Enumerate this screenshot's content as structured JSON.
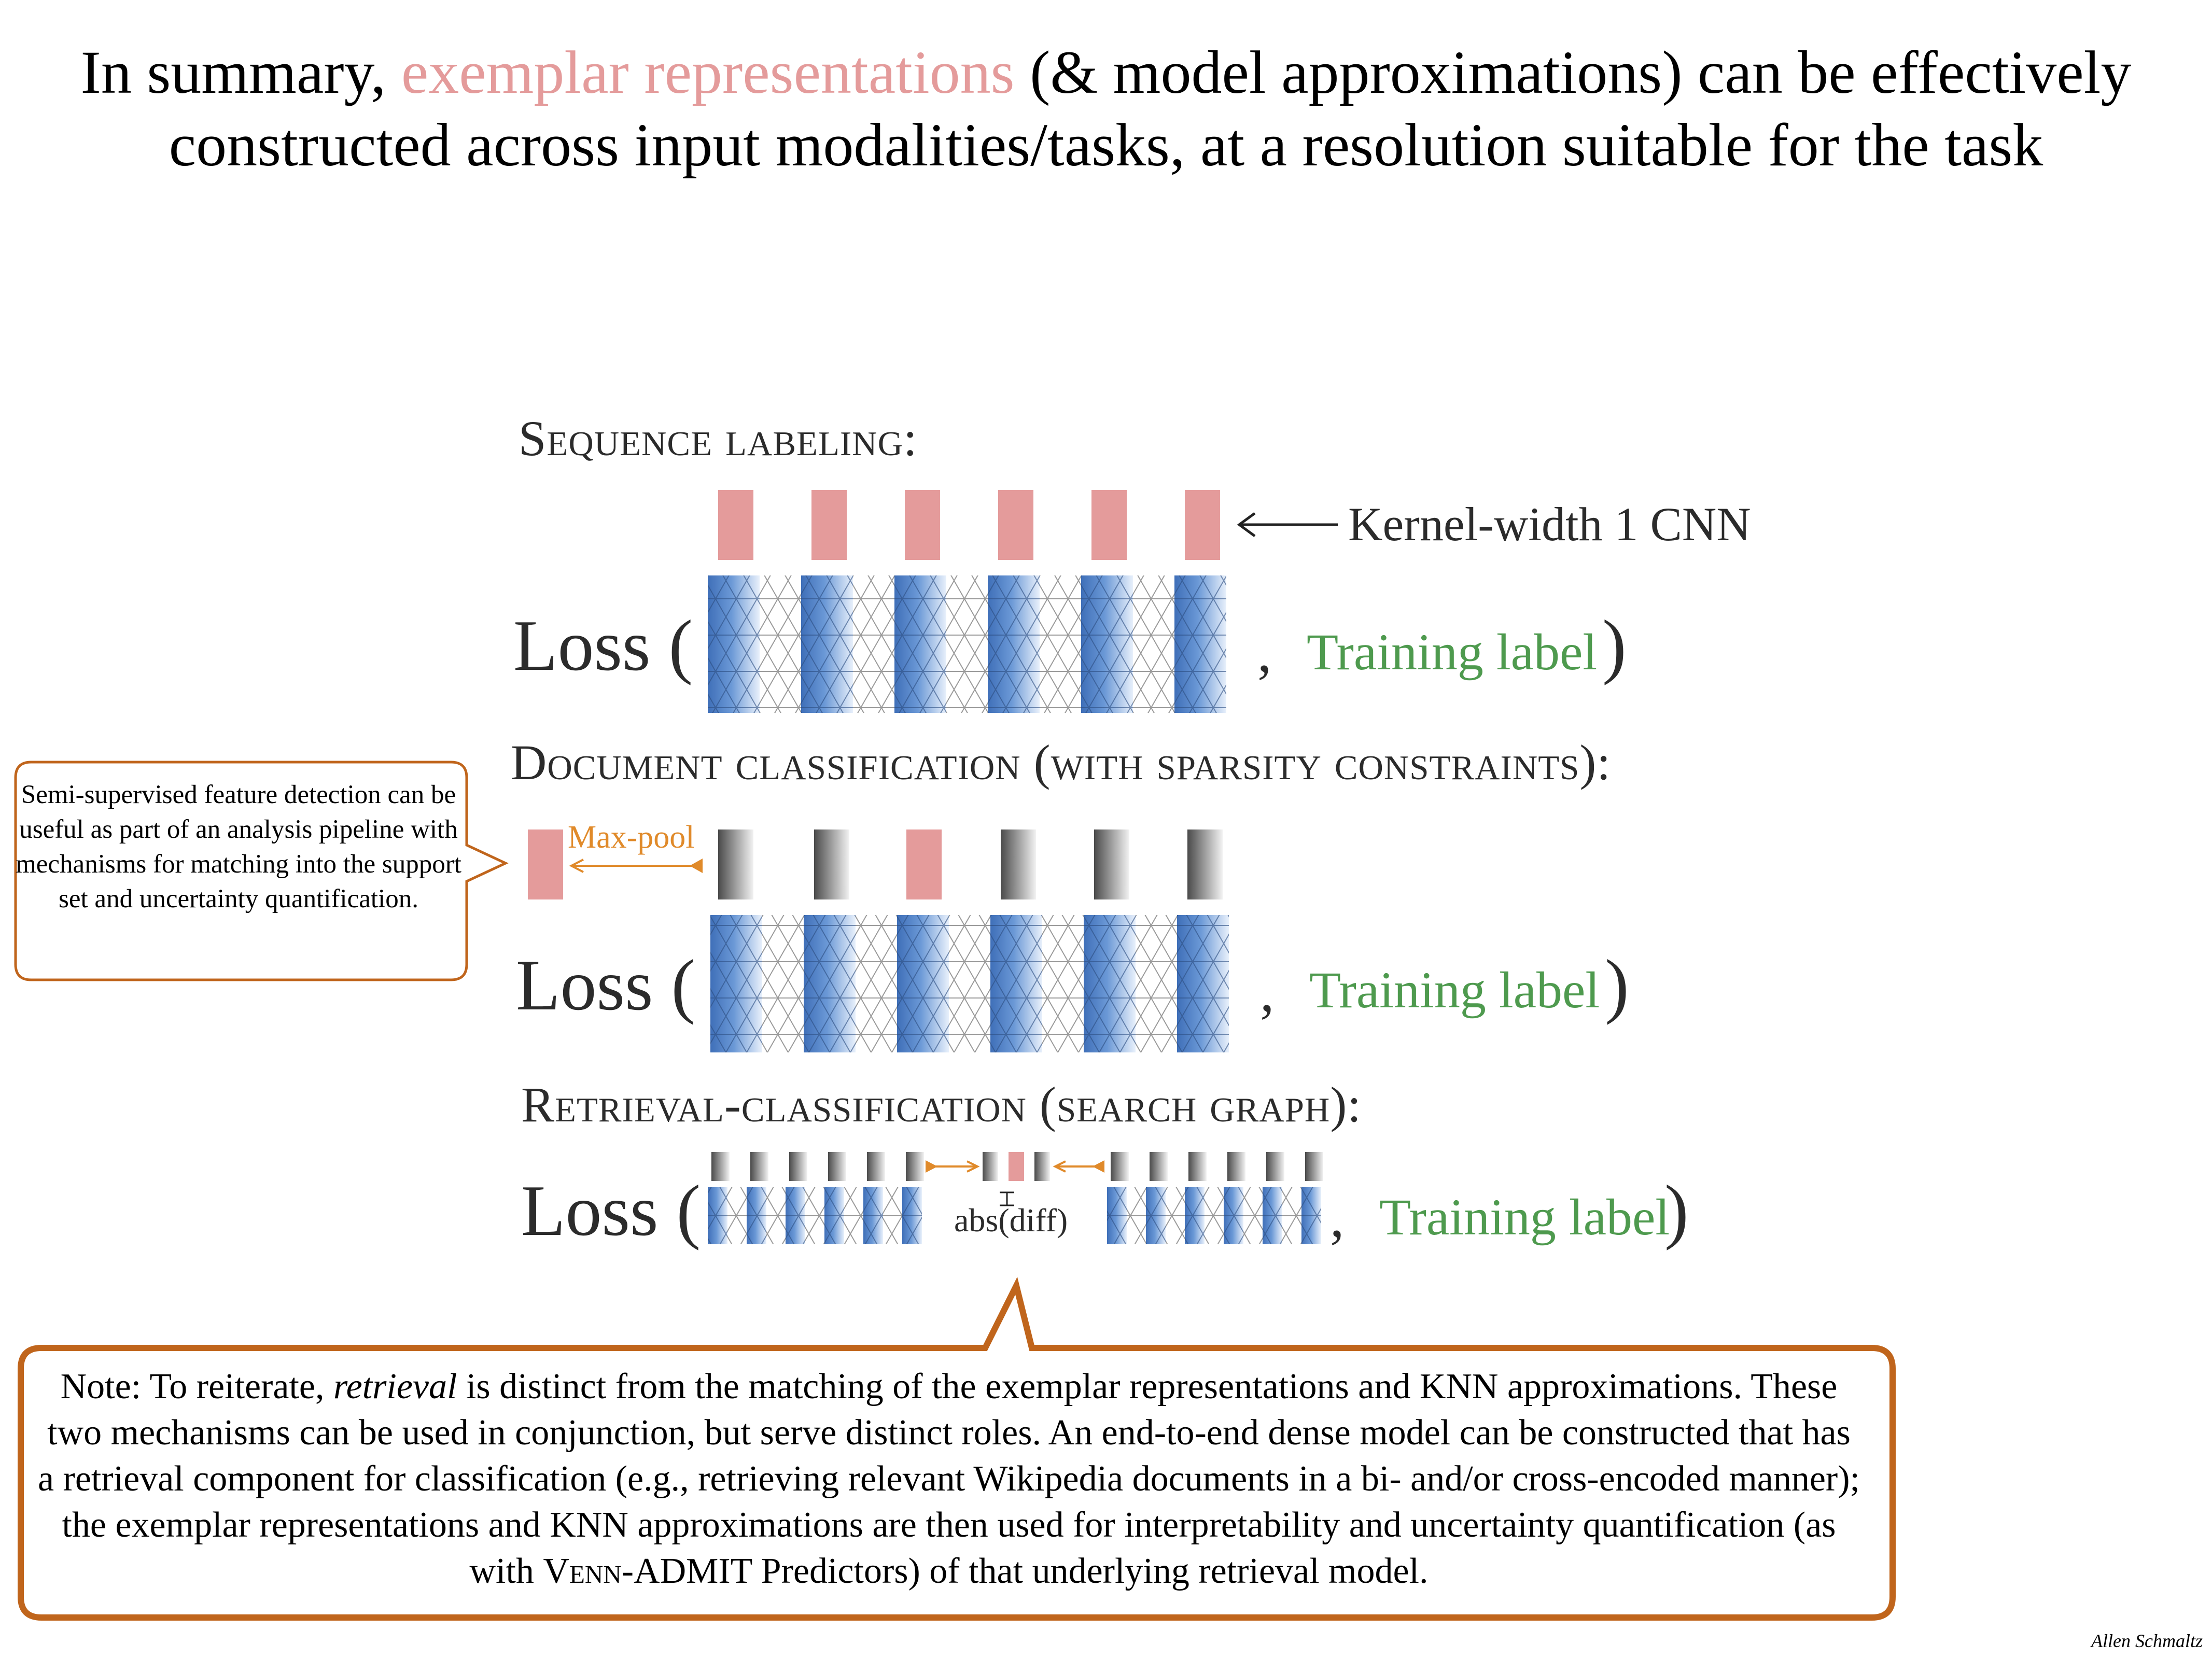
{
  "title": {
    "line1_prefix": "In summary,",
    "line1_accent": "exemplar representations",
    "line1_suffix": "(& model approximations) can be effectively",
    "line2": "constructed across input modalities/tasks, at a resolution suitable for the task"
  },
  "sections": {
    "sequence_labeling": {
      "heading": "Sequence labeling:",
      "kernel_label": "Kernel-width 1 CNN",
      "loss_label": "Loss (",
      "comma": ",",
      "training_label": "Training label",
      "close_paren": ")"
    },
    "document_classification": {
      "heading": "Document classification (with sparsity constraints):",
      "maxpool_label": "Max-pool",
      "loss_label": "Loss (",
      "comma": ",",
      "training_label": "Training label",
      "close_paren": ")"
    },
    "retrieval_classification": {
      "heading": "Retrieval-classification (search graph):",
      "absdiff_label": "abs(diff)",
      "loss_label": "Loss (",
      "comma": ",",
      "training_label": "Training label",
      "close_paren": ")"
    }
  },
  "left_callout": {
    "text": "Semi-supervised feature detection can be useful as part of an analysis pipeline with mechanisms for matching into the support set and uncertainty quantification."
  },
  "note": {
    "p1": "Note: To reiterate, ",
    "p1_italic": "retrieval",
    "p2": " is distinct from the matching of the exemplar representations and KNN approximations. These two mechanisms can be used in conjunction, but serve distinct roles. An end-to-end dense model can be constructed that has a retrieval component for classification (e.g., retrieving relevant Wikipedia documents in a bi- and/or cross-encoded manner); the exemplar representations and KNN approximations are then used for interpretability and uncertainty quantification (as with ",
    "p2_smallcaps": "Venn",
    "p3": "-ADMIT Predictors) of that underlying retrieval model."
  },
  "author": "Allen Schmaltz",
  "colors": {
    "accent_pink": "#e49b9b",
    "green_label": "#4e9a4e",
    "orange_arrow": "#e08a2a",
    "callout_border": "#c0651c",
    "blue_token": "#4a7cc4"
  }
}
